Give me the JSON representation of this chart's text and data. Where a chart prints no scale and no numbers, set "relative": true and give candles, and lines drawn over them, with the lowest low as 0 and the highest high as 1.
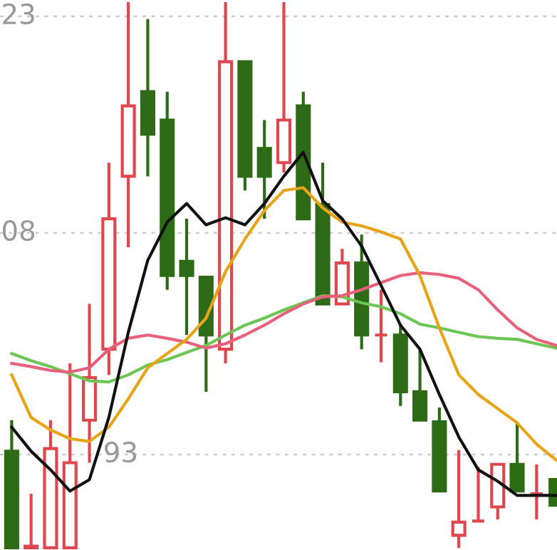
{
  "chart_data": {
    "type": "candlestick",
    "relative": true,
    "categories": [
      null,
      null,
      null,
      null,
      null,
      null,
      null,
      null,
      null,
      null,
      null,
      null,
      null,
      null,
      null,
      null,
      null,
      null,
      null,
      null,
      null,
      null,
      null,
      null,
      null,
      null,
      null,
      null,
      null
    ],
    "ohlc": [
      [
        0.177,
        0.234,
        0,
        0
      ],
      [
        0,
        0.099,
        0,
        0.003
      ],
      [
        0,
        0.234,
        0,
        0.182
      ],
      [
        0,
        0.338,
        0,
        0.156
      ],
      [
        0.234,
        0.447,
        0.156,
        0.312
      ],
      [
        0.364,
        0.706,
        0.317,
        0.603
      ],
      [
        0.681,
        1,
        0.551,
        0.81
      ],
      [
        0.836,
        0.969,
        0.681,
        0.758
      ],
      [
        0.784,
        0.836,
        0.473,
        0.499
      ],
      [
        0.525,
        0.603,
        0.39,
        0.499
      ],
      [
        0.496,
        0.496,
        0.286,
        0.39
      ],
      [
        0.364,
        1,
        0.338,
        0.891
      ],
      [
        0.891,
        0.891,
        0.655,
        0.681
      ],
      [
        0.732,
        0.784,
        0.603,
        0.681
      ],
      [
        0.706,
        1,
        0.688,
        0.784
      ],
      [
        0.81,
        0.836,
        0.603,
        0.603
      ],
      [
        0.629,
        0.706,
        0.447,
        0.447
      ],
      [
        0.447,
        0.548,
        0.447,
        0.522
      ],
      [
        0.522,
        0.574,
        0.364,
        0.39
      ],
      [
        0.39,
        0.473,
        0.34,
        0.39
      ],
      [
        0.39,
        0.41,
        0.26,
        0.286
      ],
      [
        0.286,
        0.364,
        0.234,
        0.234
      ],
      [
        0.231,
        0.257,
        0.104,
        0.104
      ],
      [
        0.023,
        0.179,
        0,
        0.047
      ],
      [
        0.049,
        0.148,
        0.049,
        0.049
      ],
      [
        0.075,
        0.153,
        0.052,
        0.153
      ],
      [
        0.153,
        0.231,
        0.104,
        0.104
      ],
      [
        0.099,
        0.153,
        0.052,
        0.099
      ],
      [
        0.125,
        0.125,
        0.078,
        0.078
      ]
    ],
    "colors": [
      "#2e6b16",
      "#e0464e",
      "#e0464e",
      "#e0464e",
      "#e0464e",
      "#e0464e",
      "#e0464e",
      "#2e6b16",
      "#2e6b16",
      "#2e6b16",
      "#2e6b16",
      "#e0464e",
      "#2e6b16",
      "#2e6b16",
      "#e0464e",
      "#2e6b16",
      "#2e6b16",
      "#e0464e",
      "#2e6b16",
      "#e0464e",
      "#2e6b16",
      "#2e6b16",
      "#2e6b16",
      "#e0464e",
      "#e0464e",
      "#e0464e",
      "#2e6b16",
      "#e0464e",
      "#2e6b16"
    ],
    "series": [
      {
        "type": "line",
        "color": "#6cc653",
        "values": [
          0.356,
          0.343,
          0.332,
          0.319,
          0.306,
          0.304,
          0.317,
          0.335,
          0.345,
          0.358,
          0.371,
          0.39,
          0.408,
          0.421,
          0.436,
          0.449,
          0.462,
          0.46,
          0.449,
          0.442,
          0.429,
          0.41,
          0.403,
          0.395,
          0.387,
          0.384,
          0.382,
          0.374,
          0.366
        ]
      },
      {
        "type": "line",
        "color": "#e8607a",
        "values": [
          0.338,
          0.332,
          0.325,
          0.322,
          0.33,
          0.364,
          0.384,
          0.39,
          0.384,
          0.377,
          0.366,
          0.374,
          0.39,
          0.408,
          0.429,
          0.447,
          0.46,
          0.462,
          0.473,
          0.486,
          0.499,
          0.504,
          0.501,
          0.494,
          0.473,
          0.436,
          0.403,
          0.382,
          0.371
        ]
      },
      {
        "type": "line",
        "color": "#e8a317",
        "values": [
          0.317,
          0.239,
          0.216,
          0.2,
          0.195,
          0.221,
          0.273,
          0.33,
          0.356,
          0.382,
          0.421,
          0.506,
          0.566,
          0.618,
          0.655,
          0.66,
          0.623,
          0.597,
          0.59,
          0.579,
          0.566,
          0.499,
          0.403,
          0.317,
          0.281,
          0.255,
          0.229,
          0.19,
          0.161
        ]
      },
      {
        "type": "line",
        "color": "#111111",
        "values": [
          0.221,
          0.177,
          0.143,
          0.104,
          0.125,
          0.239,
          0.395,
          0.527,
          0.597,
          0.631,
          0.592,
          0.605,
          0.592,
          0.631,
          0.681,
          0.725,
          0.636,
          0.603,
          0.553,
          0.481,
          0.408,
          0.364,
          0.281,
          0.203,
          0.143,
          0.122,
          0.096,
          0.096,
          0.096
        ]
      }
    ],
    "ref_lines": [
      {
        "axis": "y",
        "value": 0.974,
        "color": "#cccccc",
        "line_style": "dotted"
      },
      {
        "axis": "y",
        "value": 0.577,
        "color": "#cccccc",
        "line_style": "dotted"
      },
      {
        "axis": "y",
        "value": 0.171,
        "color": "#cccccc",
        "line_style": "dotted"
      }
    ],
    "annotations": [
      "23",
      "08",
      "93"
    ]
  }
}
